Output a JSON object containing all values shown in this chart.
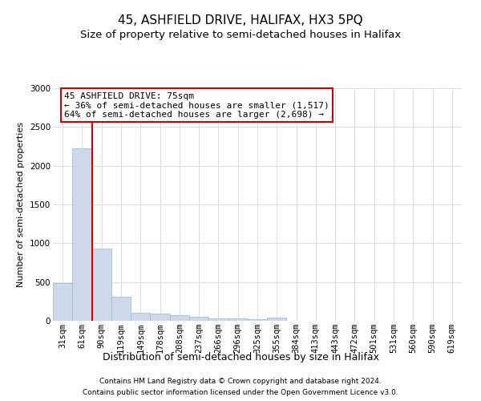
{
  "title": "45, ASHFIELD DRIVE, HALIFAX, HX3 5PQ",
  "subtitle": "Size of property relative to semi-detached houses in Halifax",
  "xlabel": "Distribution of semi-detached houses by size in Halifax",
  "ylabel": "Number of semi-detached properties",
  "footer1": "Contains HM Land Registry data © Crown copyright and database right 2024.",
  "footer2": "Contains public sector information licensed under the Open Government Licence v3.0.",
  "bins": [
    "31sqm",
    "61sqm",
    "90sqm",
    "119sqm",
    "149sqm",
    "178sqm",
    "208sqm",
    "237sqm",
    "266sqm",
    "296sqm",
    "325sqm",
    "355sqm",
    "384sqm",
    "413sqm",
    "443sqm",
    "472sqm",
    "501sqm",
    "531sqm",
    "560sqm",
    "590sqm",
    "619sqm"
  ],
  "values": [
    490,
    2220,
    930,
    310,
    100,
    90,
    70,
    50,
    30,
    30,
    25,
    45,
    5,
    5,
    3,
    2,
    2,
    1,
    1,
    1,
    1
  ],
  "bar_color": "#cdd9ea",
  "bar_edge_color": "#aabdd6",
  "red_line_x": 1.5,
  "annotation_title": "45 ASHFIELD DRIVE: 75sqm",
  "annotation_line1": "← 36% of semi-detached houses are smaller (1,517)",
  "annotation_line2": "64% of semi-detached houses are larger (2,698) →",
  "annotation_box_color": "#ffffff",
  "annotation_box_edge": "#cc0000",
  "red_line_color": "#cc0000",
  "ylim": [
    0,
    3000
  ],
  "yticks": [
    0,
    500,
    1000,
    1500,
    2000,
    2500,
    3000
  ],
  "background_color": "#ffffff",
  "grid_color": "#d5dce8",
  "title_fontsize": 11,
  "subtitle_fontsize": 9.5,
  "xlabel_fontsize": 9,
  "ylabel_fontsize": 8,
  "tick_fontsize": 7.5,
  "footer_fontsize": 6.5
}
